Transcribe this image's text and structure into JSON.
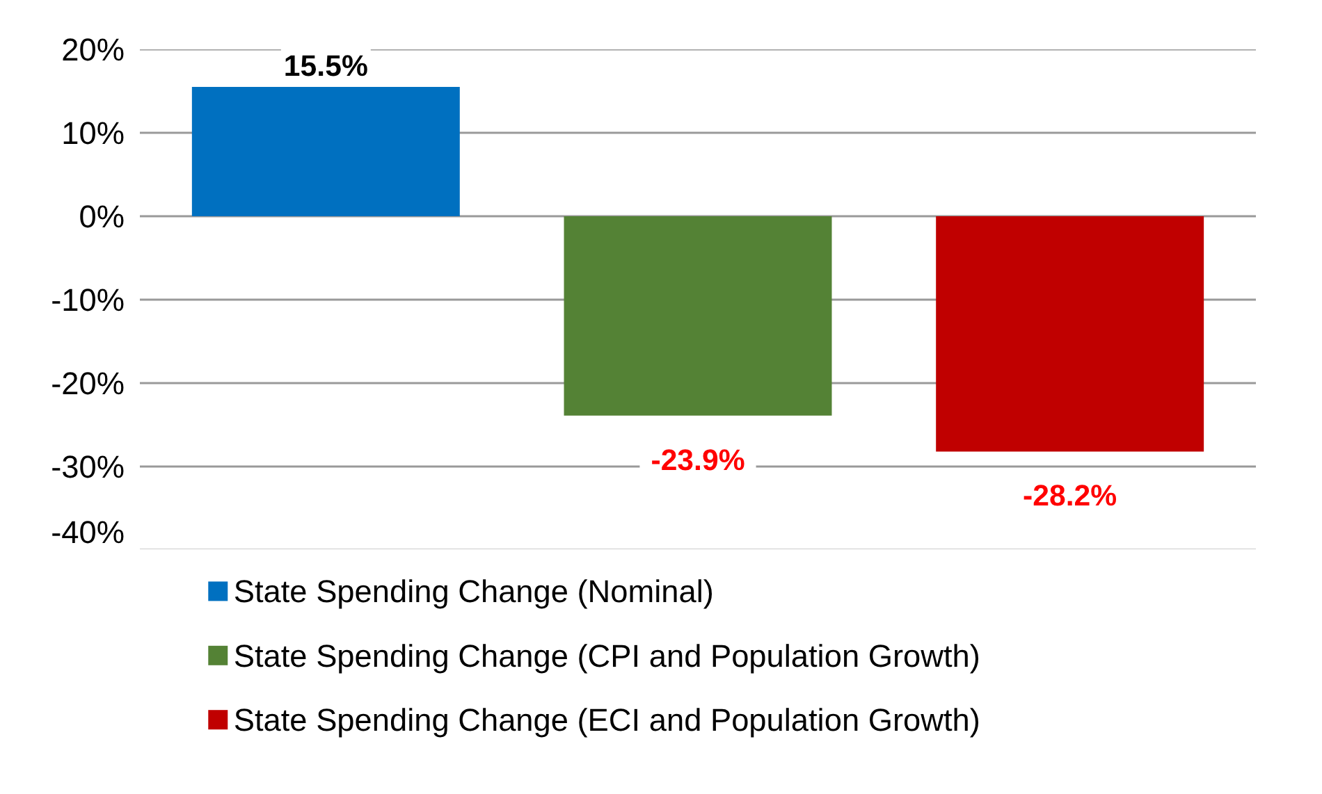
{
  "chart_data": {
    "type": "bar",
    "categories": [
      null,
      null,
      null
    ],
    "series": [
      {
        "name": "State Spending Change (Nominal)",
        "color": "#0070c0",
        "values": [
          15.5,
          null,
          null
        ],
        "value_labels": [
          "15.5%",
          null,
          null
        ]
      },
      {
        "name": "State Spending Change (CPI and Population Growth)",
        "color": "#548235",
        "values": [
          null,
          -23.9,
          null
        ],
        "value_labels": [
          null,
          "-23.9%",
          null
        ]
      },
      {
        "name": "State Spending Change (ECI and Population Growth)",
        "color": "#c00000",
        "values": [
          null,
          null,
          -28.2
        ],
        "value_labels": [
          null,
          null,
          "-28.2%"
        ]
      }
    ],
    "ylim": [
      -40,
      20
    ],
    "yticks": [
      {
        "value": -40,
        "label": "-40%"
      },
      {
        "value": -30,
        "label": "-30%"
      },
      {
        "value": -20,
        "label": "-20%"
      },
      {
        "value": -10,
        "label": "-10%"
      },
      {
        "value": 0,
        "label": "0%"
      },
      {
        "value": 10,
        "label": "10%"
      },
      {
        "value": 20,
        "label": "20%"
      }
    ],
    "grid": "y",
    "legend": "bottom",
    "tick_labels": "y"
  }
}
